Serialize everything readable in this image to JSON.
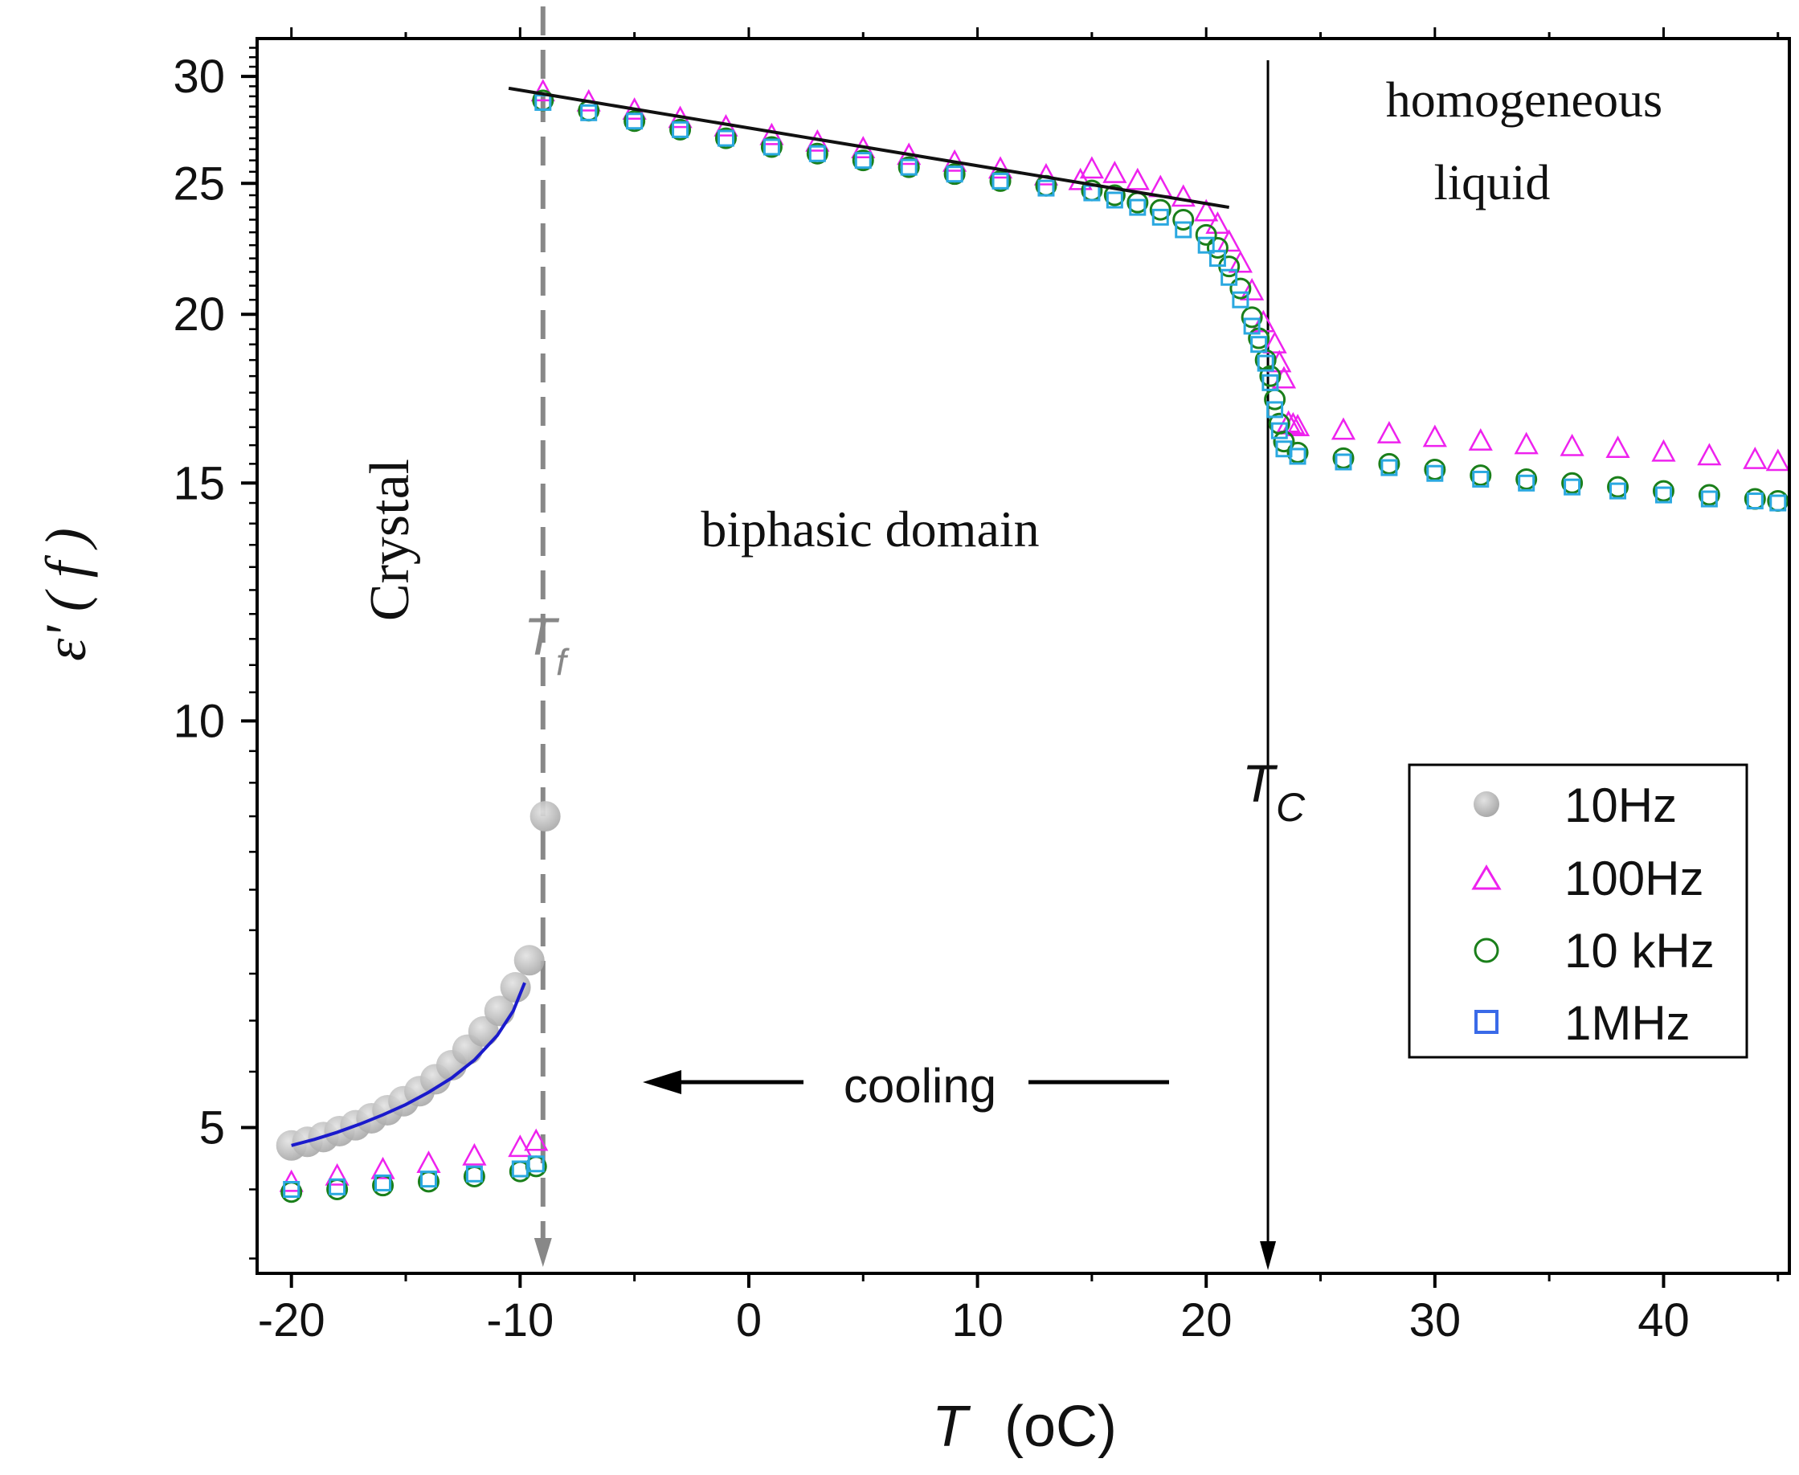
{
  "chart_data": {
    "type": "scatter",
    "xlabel_var": "T",
    "xlabel_unit": "(oC)",
    "ylabel": "ε' ( f )",
    "xlim": [
      -21.5,
      45.5
    ],
    "ylim": [
      3.9,
      32
    ],
    "yscale": "log",
    "x_ticks": [
      "-20",
      "-10",
      "0",
      "10",
      "20",
      "30",
      "40"
    ],
    "x_tick_values": [
      -20,
      -10,
      0,
      10,
      20,
      30,
      40
    ],
    "y_ticks": [
      "5",
      "10",
      "15",
      "20",
      "25",
      "30"
    ],
    "y_tick_values": [
      5,
      10,
      15,
      20,
      25,
      30
    ],
    "annotations": {
      "crystal": "Crystal",
      "biphasic": "biphasic domain",
      "homogeneous": "homogeneous",
      "liquid": "liquid",
      "tf_main": "T",
      "tf_sub": "f",
      "tc_main": "T",
      "tc_sub": "C",
      "cooling": "cooling"
    },
    "transitions": {
      "Tf": -9,
      "Tc": 22.7
    },
    "legend": [
      "10Hz",
      "100Hz",
      "10 kHz",
      "1MHz"
    ],
    "series": [
      {
        "name": "10Hz",
        "color": "#b8b8b8",
        "marker": "filled-circle",
        "x": [
          -20,
          -19.3,
          -18.6,
          -17.9,
          -17.2,
          -16.5,
          -15.8,
          -15.1,
          -14.4,
          -13.7,
          -13.0,
          -12.3,
          -11.6,
          -10.9,
          -10.2,
          -9.6,
          -8.9
        ],
        "y": [
          4.85,
          4.88,
          4.92,
          4.97,
          5.02,
          5.08,
          5.15,
          5.23,
          5.32,
          5.43,
          5.56,
          5.71,
          5.89,
          6.1,
          6.35,
          6.65,
          8.5
        ]
      },
      {
        "name": "100Hz",
        "color": "#ee22ee",
        "marker": "open-triangle",
        "x": [
          -20,
          -18,
          -16,
          -14,
          -12,
          -10,
          -9.3,
          -9,
          -7,
          -5,
          -3,
          -1,
          1,
          3,
          5,
          7,
          9,
          11,
          13,
          14.5,
          15,
          16,
          17,
          18,
          19,
          20,
          20.5,
          21,
          21.5,
          22,
          22.5,
          23,
          23.2,
          23.4,
          23.6,
          23.8,
          24,
          26,
          28,
          30,
          32,
          34,
          36,
          38,
          40,
          42,
          44,
          45
        ],
        "y": [
          4.55,
          4.6,
          4.65,
          4.7,
          4.76,
          4.83,
          4.88,
          29.2,
          28.7,
          28.3,
          27.9,
          27.5,
          27.1,
          26.8,
          26.5,
          26.2,
          25.9,
          25.6,
          25.3,
          25.1,
          25.6,
          25.4,
          25.1,
          24.8,
          24.4,
          23.8,
          23.3,
          22.6,
          21.8,
          20.8,
          19.7,
          19.0,
          18.4,
          17.9,
          16.6,
          16.55,
          16.5,
          16.4,
          16.3,
          16.2,
          16.1,
          16.0,
          15.95,
          15.9,
          15.8,
          15.7,
          15.6,
          15.55
        ]
      },
      {
        "name": "10 kHz",
        "color": "#1a7f1a",
        "marker": "open-circle",
        "x": [
          -20,
          -18,
          -16,
          -14,
          -12,
          -10,
          -9.3,
          -9,
          -7,
          -5,
          -3,
          -1,
          1,
          3,
          5,
          7,
          9,
          11,
          13,
          15,
          16,
          17,
          18,
          19,
          20,
          20.5,
          21,
          21.5,
          22,
          22.3,
          22.6,
          22.8,
          23.0,
          23.2,
          23.4,
          24,
          26,
          28,
          30,
          32,
          34,
          36,
          38,
          40,
          42,
          44,
          45
        ],
        "y": [
          4.48,
          4.5,
          4.53,
          4.56,
          4.6,
          4.64,
          4.68,
          28.8,
          28.3,
          27.8,
          27.4,
          27.0,
          26.6,
          26.3,
          26.0,
          25.7,
          25.4,
          25.1,
          24.9,
          24.7,
          24.5,
          24.2,
          23.9,
          23.5,
          22.9,
          22.4,
          21.7,
          20.9,
          19.9,
          19.2,
          18.5,
          18.0,
          17.3,
          16.6,
          16.1,
          15.8,
          15.65,
          15.5,
          15.35,
          15.2,
          15.1,
          15.0,
          14.9,
          14.8,
          14.7,
          14.6,
          14.55
        ]
      },
      {
        "name": "1MHz",
        "color": "#2aa8e0",
        "marker": "open-square",
        "x": [
          -20,
          -18,
          -16,
          -14,
          -12,
          -10,
          -9.3,
          -9,
          -7,
          -5,
          -3,
          -1,
          1,
          3,
          5,
          7,
          9,
          11,
          13,
          15,
          16,
          17,
          18,
          19,
          20,
          20.5,
          21,
          21.5,
          22,
          22.3,
          22.6,
          22.8,
          23.0,
          23.2,
          23.4,
          24,
          26,
          28,
          30,
          32,
          34,
          36,
          38,
          40,
          42,
          44,
          45
        ],
        "y": [
          4.5,
          4.52,
          4.55,
          4.58,
          4.62,
          4.66,
          4.7,
          28.7,
          28.2,
          27.8,
          27.4,
          27.0,
          26.6,
          26.3,
          26.0,
          25.7,
          25.4,
          25.1,
          24.8,
          24.6,
          24.3,
          24.0,
          23.6,
          23.1,
          22.5,
          22.0,
          21.3,
          20.5,
          19.6,
          19.0,
          18.4,
          17.8,
          17.0,
          16.4,
          15.9,
          15.7,
          15.55,
          15.4,
          15.25,
          15.1,
          15.0,
          14.9,
          14.8,
          14.7,
          14.6,
          14.55,
          14.5
        ]
      }
    ],
    "fits": [
      {
        "name": "crystal-fit",
        "color": "#1a1acc",
        "x": [
          -20,
          -19,
          -18,
          -17,
          -16,
          -15,
          -14,
          -13,
          -12,
          -11,
          -10.3,
          -9.8
        ],
        "y": [
          4.85,
          4.9,
          4.96,
          5.03,
          5.11,
          5.2,
          5.31,
          5.44,
          5.61,
          5.85,
          6.1,
          6.4
        ]
      },
      {
        "name": "biphasic-fit",
        "color": "#111111",
        "x": [
          -10.5,
          21
        ],
        "y": [
          29.4,
          24.0
        ]
      }
    ]
  }
}
